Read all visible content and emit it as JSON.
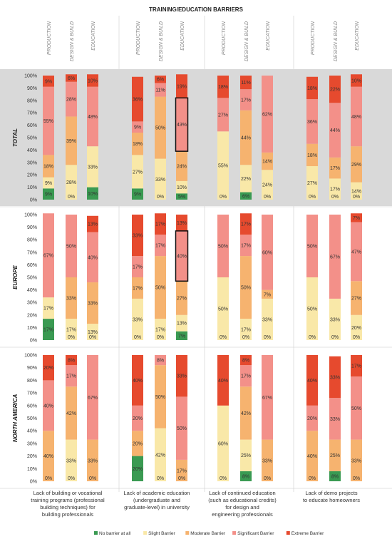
{
  "chart_data": {
    "type": "bar",
    "title": "TRAINING/EDUCATION BARRIERS",
    "stacked": true,
    "ylim": [
      0,
      100
    ],
    "y_ticks": [
      "0%",
      "10%",
      "20%",
      "30%",
      "40%",
      "50%",
      "60%",
      "70%",
      "80%",
      "90%",
      "100%"
    ],
    "bar_labels": [
      "PRODUCTION",
      "DESIGN & BUILD",
      "EDUCATION"
    ],
    "regions": [
      "TOTAL",
      "EUROPE",
      "NORTH AMERICA"
    ],
    "categories": [
      "Lack of building or vocational training programs (professional building techniques) for building professionals",
      "Lack of academic education (undergraduate and graduate-level) in university",
      "Lack of continued education (such as educational credits) for design and engineering professionals",
      "Lack of demo projects to educate homeowners"
    ],
    "category_lines": [
      [
        "Lack of building or vocational",
        "training programs (professional",
        "building techniques) for",
        "building professionals"
      ],
      [
        "Lack of academic education",
        "(undergraduate and",
        "graduate-level) in university"
      ],
      [
        "Lack of continued education",
        "(such as educational credits)",
        "for design and",
        "engineering professionals"
      ],
      [
        "Lack of demo projects",
        "to educate homeowners"
      ]
    ],
    "legend": [
      "No barrier at all",
      "Slight Barrier",
      "Moderate Barrier",
      "Significant Barrier",
      "Extreme Barrier"
    ],
    "colors": {
      "No barrier at all": "#3a9a52",
      "Slight Barrier": "#f9e8a8",
      "Moderate Barrier": "#f6b36f",
      "Significant Barrier": "#f39089",
      "Extreme Barrier": "#e64a2e"
    },
    "panel_background": "#d9d9d9",
    "highlight_note": "black outlines mark the largest share per bar where drawn",
    "data": {
      "TOTAL": [
        [
          [
            9,
            9,
            18,
            55,
            9
          ],
          [
            0,
            28,
            39,
            28,
            6
          ],
          [
            10,
            33,
            0,
            48,
            10
          ]
        ],
        [
          [
            9,
            27,
            18,
            9,
            36
          ],
          [
            0,
            33,
            50,
            11,
            6
          ],
          [
            5,
            10,
            24,
            43,
            19
          ]
        ],
        [
          [
            0,
            55,
            0,
            27,
            18
          ],
          [
            6,
            22,
            44,
            17,
            11
          ],
          [
            0,
            24,
            14,
            62,
            0
          ]
        ],
        [
          [
            0,
            27,
            18,
            36,
            18
          ],
          [
            0,
            17,
            17,
            44,
            22
          ],
          [
            0,
            14,
            29,
            48,
            10
          ]
        ]
      ],
      "EUROPE": [
        [
          [
            17,
            17,
            0,
            67,
            0
          ],
          [
            0,
            17,
            33,
            50,
            0
          ],
          [
            0,
            13,
            33,
            40,
            13
          ]
        ],
        [
          [
            0,
            33,
            17,
            17,
            33
          ],
          [
            0,
            17,
            50,
            17,
            17
          ],
          [
            7,
            13,
            27,
            40,
            13
          ]
        ],
        [
          [
            0,
            50,
            0,
            50,
            0
          ],
          [
            0,
            17,
            50,
            17,
            17
          ],
          [
            0,
            33,
            7,
            60,
            0
          ]
        ],
        [
          [
            0,
            50,
            0,
            50,
            0
          ],
          [
            0,
            33,
            0,
            67,
            0
          ],
          [
            0,
            20,
            27,
            47,
            7
          ]
        ]
      ],
      "NORTH AMERICA": [
        [
          [
            0,
            0,
            40,
            40,
            20
          ],
          [
            0,
            33,
            42,
            17,
            8
          ],
          [
            0,
            0,
            33,
            67,
            0
          ]
        ],
        [
          [
            20,
            0,
            20,
            20,
            40
          ],
          [
            0,
            42,
            50,
            8,
            0
          ],
          [
            0,
            0,
            17,
            50,
            33
          ]
        ],
        [
          [
            0,
            60,
            0,
            0,
            40
          ],
          [
            8,
            25,
            42,
            17,
            8
          ],
          [
            0,
            0,
            33,
            67,
            0
          ]
        ],
        [
          [
            0,
            0,
            40,
            20,
            40
          ],
          [
            8,
            0,
            25,
            33,
            33
          ],
          [
            0,
            0,
            33,
            50,
            17
          ]
        ]
      ]
    },
    "highlighted": {
      "TOTAL": [
        [
          0,
          3
        ],
        [
          1,
          2
        ],
        [
          2,
          3
        ],
        [
          3,
          3
        ]
      ],
      "EUROPE": [
        [
          0,
          3
        ],
        [
          1,
          2
        ],
        [
          2,
          3
        ],
        [
          3,
          3
        ]
      ],
      "NORTH AMERICA": [
        [
          0,
          3
        ],
        [
          1,
          3
        ],
        [
          2,
          3
        ],
        [
          3,
          3
        ]
      ]
    }
  }
}
